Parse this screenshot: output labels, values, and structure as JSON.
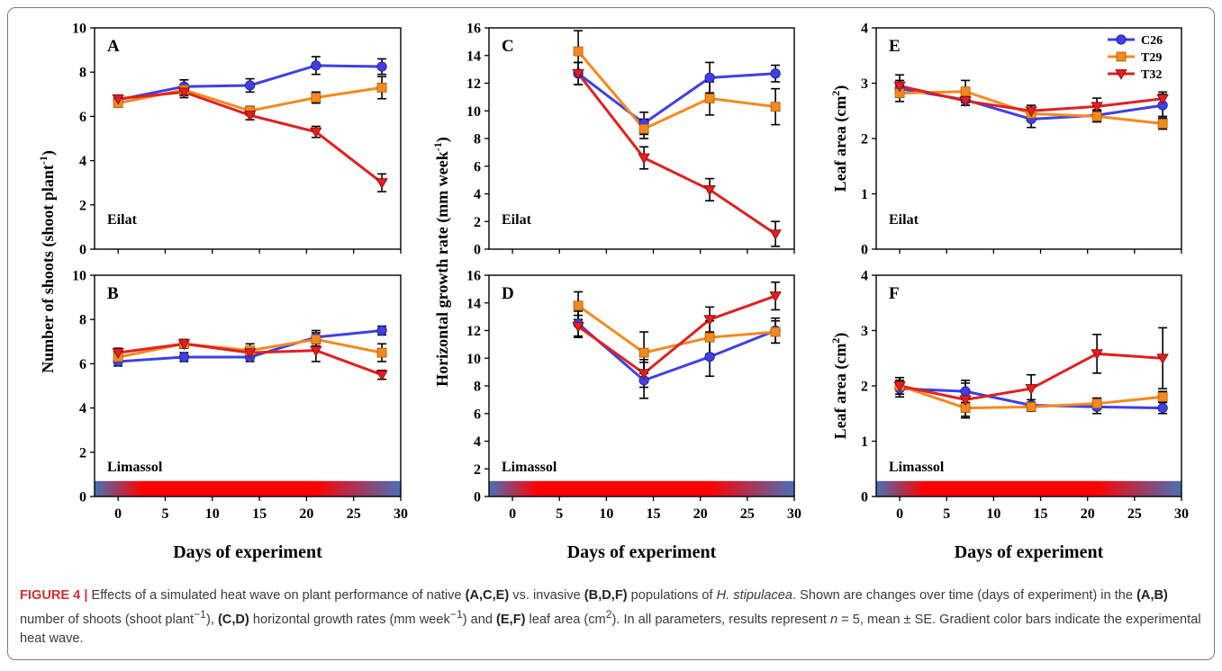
{
  "chart_data": [
    {
      "id": "A",
      "type": "line",
      "panel_label": "A",
      "site_label": "Eilat",
      "ylabel": "Number of shoots (shoot plant⁻¹)",
      "xlabel": "",
      "ylim": [
        0,
        10
      ],
      "yticks": [
        0,
        2,
        4,
        6,
        8,
        10
      ],
      "xlim": [
        -2.5,
        30
      ],
      "xticks": [
        0,
        5,
        10,
        15,
        20,
        25,
        30
      ],
      "legend": false,
      "heatwave_bar": false,
      "series": [
        {
          "name": "C26",
          "x": [
            0,
            7,
            14,
            21,
            28
          ],
          "values": [
            6.75,
            7.35,
            7.4,
            8.3,
            8.25
          ],
          "err": [
            0.15,
            0.3,
            0.3,
            0.4,
            0.35
          ]
        },
        {
          "name": "T29",
          "x": [
            0,
            7,
            14,
            21,
            28
          ],
          "values": [
            6.6,
            7.2,
            6.25,
            6.85,
            7.3
          ],
          "err": [
            0.15,
            0.25,
            0.2,
            0.25,
            0.5
          ]
        },
        {
          "name": "T32",
          "x": [
            0,
            7,
            14,
            21,
            28
          ],
          "values": [
            6.8,
            7.1,
            6.05,
            5.3,
            3.0
          ],
          "err": [
            0.15,
            0.25,
            0.2,
            0.25,
            0.4
          ]
        }
      ]
    },
    {
      "id": "B",
      "type": "line",
      "panel_label": "B",
      "site_label": "Limassol",
      "ylabel": "",
      "xlabel": "Days of experiment",
      "ylim": [
        0,
        10
      ],
      "yticks": [
        0,
        2,
        4,
        6,
        8,
        10
      ],
      "xlim": [
        -2.5,
        30
      ],
      "xticks": [
        0,
        5,
        10,
        15,
        20,
        25,
        30
      ],
      "legend": false,
      "heatwave_bar": true,
      "series": [
        {
          "name": "C26",
          "x": [
            0,
            7,
            14,
            21,
            28
          ],
          "values": [
            6.1,
            6.3,
            6.3,
            7.2,
            7.5
          ],
          "err": [
            0.2,
            0.2,
            0.2,
            0.3,
            0.2
          ]
        },
        {
          "name": "T29",
          "x": [
            0,
            7,
            14,
            21,
            28
          ],
          "values": [
            6.3,
            6.9,
            6.6,
            7.1,
            6.5
          ],
          "err": [
            0.25,
            0.2,
            0.3,
            0.3,
            0.4
          ]
        },
        {
          "name": "T32",
          "x": [
            0,
            7,
            14,
            21,
            28
          ],
          "values": [
            6.5,
            6.9,
            6.5,
            6.6,
            5.5
          ],
          "err": [
            0.2,
            0.2,
            0.25,
            0.5,
            0.2
          ]
        }
      ]
    },
    {
      "id": "C",
      "type": "line",
      "panel_label": "C",
      "site_label": "Eilat",
      "ylabel": "Horizontal growth rate (mm week⁻¹)",
      "xlabel": "",
      "ylim": [
        0,
        16
      ],
      "yticks": [
        0,
        2,
        4,
        6,
        8,
        10,
        12,
        14,
        16
      ],
      "xlim": [
        -2.5,
        30
      ],
      "xticks": [
        0,
        5,
        10,
        15,
        20,
        25,
        30
      ],
      "legend": false,
      "heatwave_bar": false,
      "series": [
        {
          "name": "C26",
          "x": [
            7,
            14,
            21,
            28
          ],
          "values": [
            12.7,
            9.1,
            12.4,
            12.7
          ],
          "err": [
            0.8,
            0.8,
            1.1,
            0.6
          ]
        },
        {
          "name": "T29",
          "x": [
            7,
            14,
            21,
            28
          ],
          "values": [
            14.3,
            8.7,
            10.9,
            10.3
          ],
          "err": [
            1.5,
            0.7,
            1.2,
            1.3
          ]
        },
        {
          "name": "T32",
          "x": [
            7,
            14,
            21,
            28
          ],
          "values": [
            12.7,
            6.6,
            4.3,
            1.1
          ],
          "err": [
            0.8,
            0.8,
            0.8,
            0.9
          ]
        }
      ]
    },
    {
      "id": "D",
      "type": "line",
      "panel_label": "D",
      "site_label": "Limassol",
      "ylabel": "",
      "xlabel": "Days of experiment",
      "ylim": [
        0,
        16
      ],
      "yticks": [
        0,
        2,
        4,
        6,
        8,
        10,
        12,
        14,
        16
      ],
      "xlim": [
        -2.5,
        30
      ],
      "xticks": [
        0,
        5,
        10,
        15,
        20,
        25,
        30
      ],
      "legend": false,
      "heatwave_bar": true,
      "series": [
        {
          "name": "C26",
          "x": [
            7,
            14,
            21,
            28
          ],
          "values": [
            12.5,
            8.4,
            10.1,
            12.0
          ],
          "err": [
            0.9,
            1.3,
            1.4,
            0.9
          ]
        },
        {
          "name": "T29",
          "x": [
            7,
            14,
            21,
            28
          ],
          "values": [
            13.8,
            10.4,
            11.5,
            11.9
          ],
          "err": [
            1.0,
            1.5,
            1.2,
            0.8
          ]
        },
        {
          "name": "T32",
          "x": [
            7,
            14,
            21,
            28
          ],
          "values": [
            12.3,
            8.9,
            12.8,
            14.5
          ],
          "err": [
            0.8,
            1.0,
            0.9,
            1.0
          ]
        }
      ]
    },
    {
      "id": "E",
      "type": "line",
      "panel_label": "E",
      "site_label": "Eilat",
      "ylabel": "Leaf area (cm²)",
      "xlabel": "",
      "ylim": [
        0,
        4
      ],
      "yticks": [
        0,
        1,
        2,
        3,
        4
      ],
      "xlim": [
        -2.5,
        30
      ],
      "xticks": [
        0,
        5,
        10,
        15,
        20,
        25,
        30
      ],
      "legend": true,
      "legend_position": "top-right",
      "heatwave_bar": false,
      "series": [
        {
          "name": "C26",
          "x": [
            0,
            7,
            14,
            21,
            28
          ],
          "values": [
            2.9,
            2.7,
            2.35,
            2.42,
            2.6
          ],
          "err": [
            0.15,
            0.1,
            0.15,
            0.1,
            0.2
          ]
        },
        {
          "name": "T29",
          "x": [
            0,
            7,
            14,
            21,
            28
          ],
          "values": [
            2.82,
            2.85,
            2.45,
            2.4,
            2.27
          ],
          "err": [
            0.15,
            0.2,
            0.1,
            0.1,
            0.1
          ]
        },
        {
          "name": "T32",
          "x": [
            0,
            7,
            14,
            21,
            28
          ],
          "values": [
            2.95,
            2.68,
            2.5,
            2.58,
            2.72
          ],
          "err": [
            0.2,
            0.08,
            0.1,
            0.15,
            0.12
          ]
        }
      ]
    },
    {
      "id": "F",
      "type": "line",
      "panel_label": "F",
      "site_label": "Limassol",
      "ylabel": "Leaf area (cm²)",
      "xlabel": "Days of experiment",
      "ylim": [
        0,
        4
      ],
      "yticks": [
        0,
        1,
        2,
        3,
        4
      ],
      "xlim": [
        -2.5,
        30
      ],
      "xticks": [
        0,
        5,
        10,
        15,
        20,
        25,
        30
      ],
      "legend": false,
      "heatwave_bar": true,
      "series": [
        {
          "name": "C26",
          "x": [
            0,
            7,
            14,
            21,
            28
          ],
          "values": [
            1.95,
            1.9,
            1.65,
            1.62,
            1.6
          ],
          "err": [
            0.15,
            0.2,
            0.1,
            0.12,
            0.1
          ]
        },
        {
          "name": "T29",
          "x": [
            0,
            7,
            14,
            21,
            28
          ],
          "values": [
            2.0,
            1.6,
            1.62,
            1.68,
            1.8
          ],
          "err": [
            0.15,
            0.18,
            0.08,
            0.1,
            0.1
          ]
        },
        {
          "name": "T32",
          "x": [
            0,
            7,
            14,
            21,
            28
          ],
          "values": [
            2.0,
            1.75,
            1.95,
            2.58,
            2.5
          ],
          "err": [
            0.15,
            0.3,
            0.25,
            0.35,
            0.55
          ]
        }
      ]
    }
  ],
  "colors": {
    "C26": "#3f3fe6",
    "T29": "#f5891f",
    "T32": "#e02020",
    "axis": "#000000",
    "heatwave_cool": "#4a6fb5",
    "heatwave_hot": "#ff0000"
  },
  "caption": {
    "figure_label": "FIGURE 4 |",
    "t1": " Effects of a simulated heat wave on plant performance of native ",
    "t2": "(A,C,E)",
    "t3": " vs. invasive ",
    "t4": "(B,D,F)",
    "t5": " populations of ",
    "t6": "H. stipulacea",
    "t7": ". Shown are changes over time (days of experiment) in the ",
    "t8": "(A,B)",
    "t9": " number of shoots (shoot plant",
    "t10": "−1",
    "t11": "), ",
    "t12": "(C,D)",
    "t13": " horizontal growth rates (mm week",
    "t14": "−1",
    "t15": ") and ",
    "t16": "(E,F)",
    "t17": " leaf area (cm",
    "t18": "2",
    "t19": "). In all parameters, results represent ",
    "t20": "n",
    "t21": " = 5, mean ± SE. Gradient color bars indicate the experimental heat wave."
  }
}
